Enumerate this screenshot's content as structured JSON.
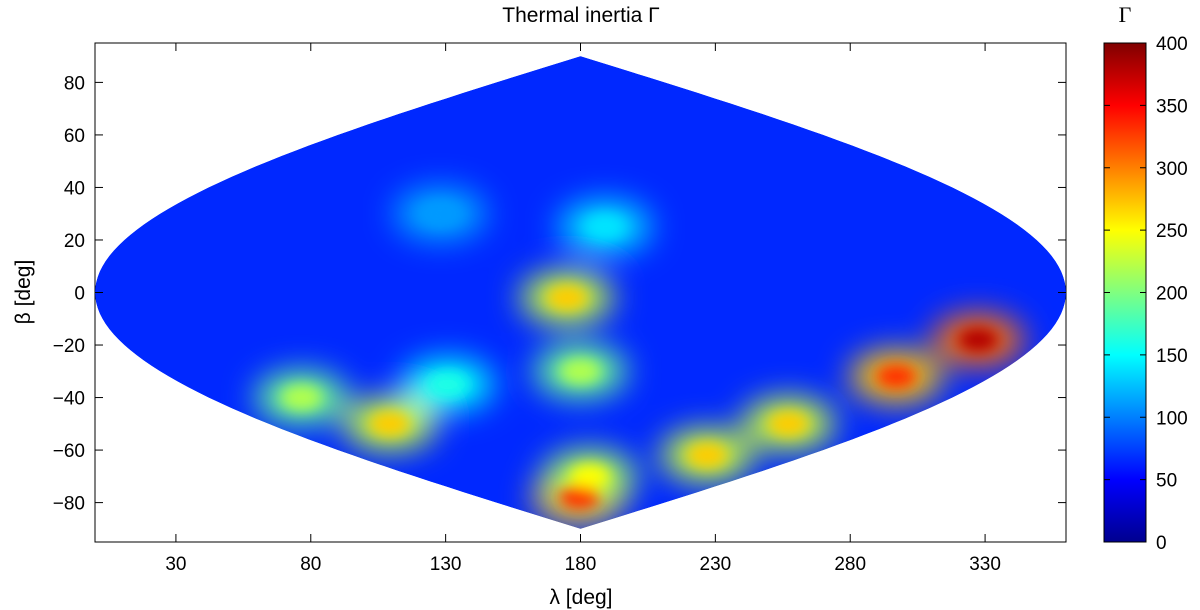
{
  "chart_data": {
    "type": "heatmap",
    "projection": "sinusoidal",
    "title": "Thermal inertia Γ",
    "xlabel": "λ [deg]",
    "ylabel": "β [deg]",
    "xlim": [
      0,
      360
    ],
    "ylim": [
      -95,
      95
    ],
    "xticks": [
      30,
      80,
      130,
      180,
      230,
      280,
      330
    ],
    "yticks": [
      80,
      60,
      40,
      20,
      0,
      -20,
      -40,
      -60,
      -80
    ],
    "xtick_labels": [
      "30",
      "80",
      "130",
      "180",
      "230",
      "280",
      "330"
    ],
    "ytick_labels": [
      "80",
      "60",
      "40",
      "20",
      "0",
      "−20",
      "−40",
      "−60",
      "−80"
    ],
    "colormap": "jet",
    "colorbar": {
      "label": "Γ",
      "range": [
        0,
        400
      ],
      "ticks": [
        400,
        350,
        300,
        250,
        200,
        150,
        100,
        50,
        0
      ],
      "tick_labels": [
        "400",
        "350",
        "300",
        "250",
        "200",
        "150",
        "100",
        "50",
        "0"
      ]
    },
    "contour_level_color": "#ffffff",
    "hotspots": [
      {
        "lon": 335,
        "lat": -18,
        "value": 380
      },
      {
        "lon": 318,
        "lat": -32,
        "value": 330
      },
      {
        "lon": 300,
        "lat": -50,
        "value": 270
      },
      {
        "lon": 280,
        "lat": -62,
        "value": 270
      },
      {
        "lon": 178,
        "lat": -78,
        "value": 330
      },
      {
        "lon": 190,
        "lat": -70,
        "value": 250
      },
      {
        "lon": 175,
        "lat": -2,
        "value": 270
      },
      {
        "lon": 180,
        "lat": -30,
        "value": 220
      },
      {
        "lon": 70,
        "lat": -50,
        "value": 270
      },
      {
        "lon": 45,
        "lat": -40,
        "value": 220
      },
      {
        "lon": 120,
        "lat": -35,
        "value": 160
      },
      {
        "lon": 190,
        "lat": 25,
        "value": 140
      },
      {
        "lon": 120,
        "lat": 30,
        "value": 110
      }
    ]
  }
}
